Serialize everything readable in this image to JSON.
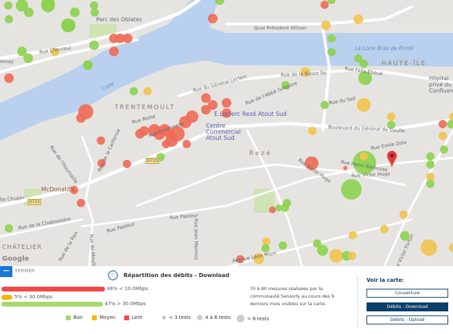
{
  "map": {
    "labels": {
      "parc": "Parc des Oblates",
      "quai_wilson": "Quai Président Wilson",
      "rue_chevreul": "Rue Chevreul",
      "loire": "Loire",
      "la_loire": "La Loire",
      "bras_pirmil": "Bras de Pirmil",
      "haute_ile": "HAUTE-ÎLE",
      "hopital": "Hôpital privé du Confluent",
      "trentemoult": "TRENTEMOULT",
      "rue_basse_ile": "Rue de la Basse Île",
      "rue_felix_eboue": "Rue Félix Éboué",
      "rue_general_leclerc": "Rue du Général Leclerc",
      "rue_abbe_gregoire": "Rue de l'Abbé Grégoire",
      "rue_seil": "Rue du Seil",
      "leclerc": "E.Leclerc Rezé Atout Sud",
      "centre_commercial": "Centre Commercial Atout Sud",
      "bd_de_gaulle": "Boulevard du Général de Gaulle",
      "rue_roine": "Rue Roine",
      "rue_ordonneau": "Rue Ordonneau",
      "rue_californie": "Rue de la Californie",
      "rue_houmaille": "Rue de l'Houmaille",
      "mcdonalds": "McDonald's",
      "ile_chupin": "Île Chupin",
      "d723": "D723",
      "rue_chabossiere": "Rue de la Chabossière",
      "rue_pasteur": "Rue Pasteur",
      "rue_jean_mermoz": "Rue Jean Mermoz",
      "rue_paix": "Rue de la Paix",
      "rue_moulin": "Rue du Moulin",
      "chatelier": "CHÂTELIER",
      "reze": "Rezé",
      "rue_emile_zola": "Rue Emile Zola",
      "rue_henri_barbusse": "Rue Henri Barbusse",
      "rue_victor_hugo": "Rue Victor Hugo",
      "avenue_leon_blum": "Avenue Léon Blum",
      "rue_victor_fortun": "Rue Victor Fortun",
      "chantenay": "Chantenay",
      "google": "Google"
    },
    "colors": {
      "bon": "#8cd24f",
      "moyen": "#f0c34c",
      "lent": "#ee6a55",
      "water": "#b9d0ee",
      "marker": "#e53935"
    }
  },
  "panel": {
    "close_label": "FERMER",
    "title": "Répartition des débits - Download",
    "title_icon": "speedometer-icon",
    "bars": [
      {
        "pct": 48,
        "text": "48% < 10.0Mbps",
        "color": "#f4474a"
      },
      {
        "pct": 5,
        "text": "5% < 30.0Mbps",
        "color": "#f5b400"
      },
      {
        "pct": 47,
        "text": "47% > 30.0Mbps",
        "color": "#a6d86c"
      }
    ],
    "legend": {
      "bon": "Bon",
      "moyen": "Moyen",
      "lent": "Lent",
      "small": "< 3 tests",
      "medium": "4 à 6 tests",
      "large": "> 6 tests"
    },
    "description": "70 à 80 mesures réalisées par la communauté Sensorly au cours des 9 derniers mois visibles sur la carte.",
    "voir_label": "Voir la carte:",
    "buttons": {
      "couverture": "Couverture",
      "download": "Débits - Download",
      "upload": "Débits - Upload"
    },
    "active_color": "#0d3e6b"
  }
}
